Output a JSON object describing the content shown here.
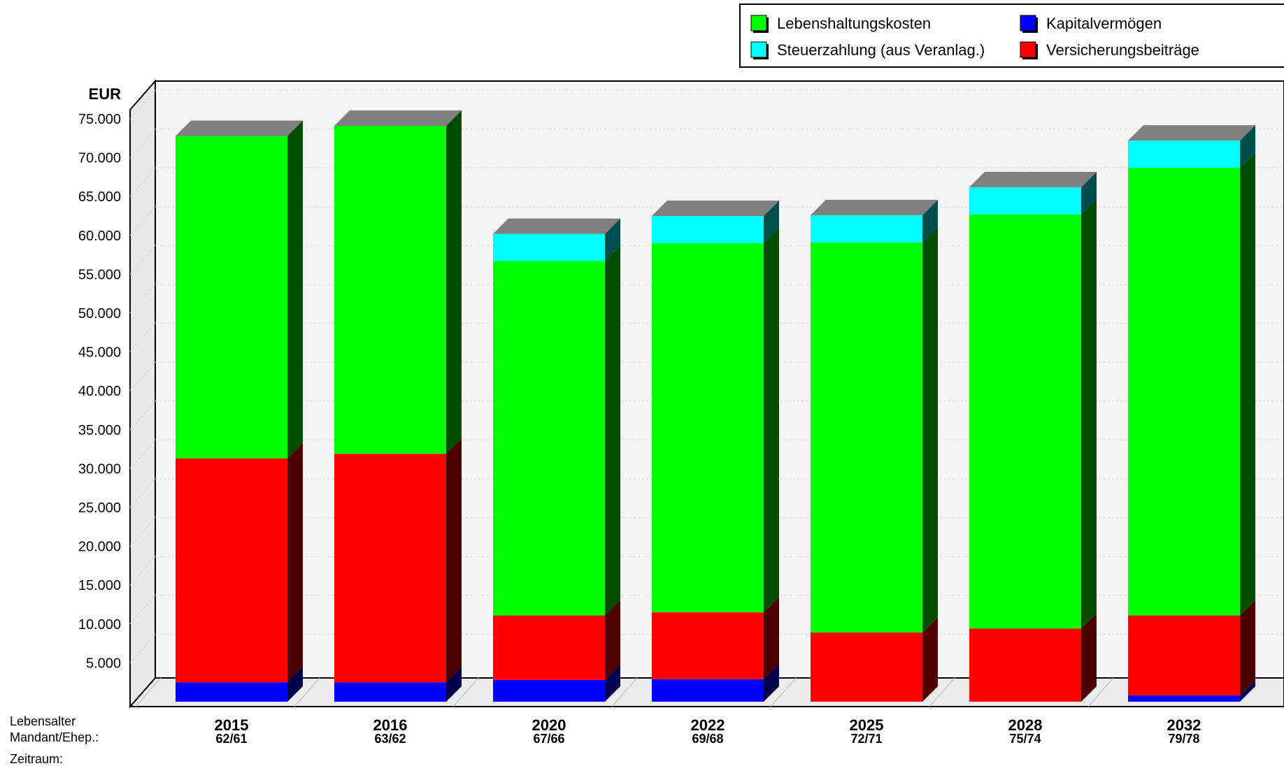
{
  "chart_data": {
    "type": "bar",
    "stacked": true,
    "three_d": true,
    "ylabel": "EUR",
    "ylim": [
      0,
      75000
    ],
    "yticks": [
      "5.000",
      "10.000",
      "15.000",
      "20.000",
      "25.000",
      "30.000",
      "35.000",
      "40.000",
      "45.000",
      "50.000",
      "55.000",
      "60.000",
      "65.000",
      "70.000",
      "75.000"
    ],
    "ytick_values": [
      5000,
      10000,
      15000,
      20000,
      25000,
      30000,
      35000,
      40000,
      45000,
      50000,
      55000,
      60000,
      65000,
      70000,
      75000
    ],
    "grid": true,
    "legend_position": "top-right",
    "categories": [
      "2015",
      "2016",
      "2020",
      "2022",
      "2025",
      "2028",
      "2032"
    ],
    "category_sublabels": [
      "62/61",
      "63/62",
      "67/66",
      "69/68",
      "72/71",
      "75/74",
      "79/78"
    ],
    "row_labels": [
      "Lebensalter",
      "Mandant/Ehep.:",
      "Zeitraum:"
    ],
    "series": [
      {
        "name": "Kapitalvermögen",
        "color": "#0000ff",
        "values": [
          2500,
          2500,
          2800,
          2900,
          0,
          0,
          800
        ]
      },
      {
        "name": "Versicherungsbeiträge",
        "color": "#ff0000",
        "values": [
          28800,
          29400,
          8300,
          8600,
          8900,
          9400,
          10300
        ]
      },
      {
        "name": "Lebenshaltungskosten",
        "color": "#00ff00",
        "values": [
          41500,
          42200,
          45600,
          47500,
          50200,
          53300,
          57600
        ]
      },
      {
        "name": "Steuerzahlung (aus Veranlag.)",
        "color": "#00ffff",
        "values": [
          0,
          0,
          3500,
          3500,
          3500,
          3500,
          3500
        ]
      }
    ],
    "legend_order": [
      "Lebenshaltungskosten",
      "Kapitalvermögen",
      "Steuerzahlung (aus Veranlag.)",
      "Versicherungsbeiträge"
    ]
  }
}
